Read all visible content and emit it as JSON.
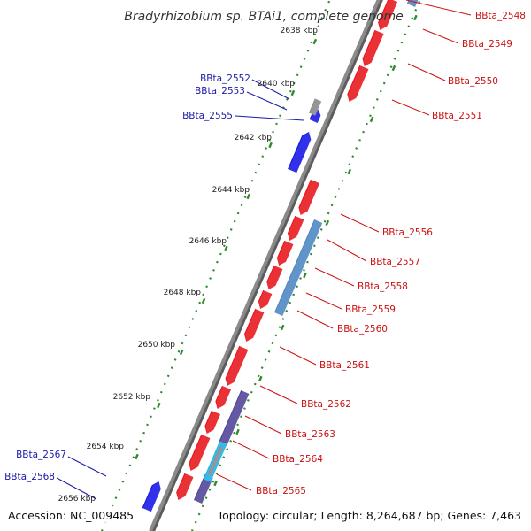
{
  "title": "Bradyrhizobium sp. BTAi1, complete genome",
  "footer": {
    "accession": "Accession: NC_009485",
    "summary": "Topology: circular; Length: 8,264,687 bp; Genes: 7,463"
  },
  "colors": {
    "backbone": "#8a8a8a",
    "tick_dots": "#2f8a2f",
    "forward_gene": "#e8151b",
    "reverse_gene": "#1515e6",
    "steel_gene": "#4c86c2",
    "indigo_gene": "#4f4396",
    "cyan_gene": "#1ab2e8",
    "gray_gene": "#888888",
    "left_label": "#1a1aa6",
    "right_label": "#cc1111"
  },
  "ticks": [
    "2638 kbp",
    "2640 kbp",
    "2642 kbp",
    "2644 kbp",
    "2646 kbp",
    "2648 kbp",
    "2650 kbp",
    "2652 kbp",
    "2654 kbp",
    "2656 kbp"
  ],
  "left_labels": [
    "BBta_2552",
    "BBta_2553",
    "BBta_2555",
    "BBta_2567",
    "BBta_2568"
  ],
  "right_labels": [
    "BBta_2548",
    "BBta_2549",
    "BBta_2550",
    "BBta_2551",
    "BBta_2556",
    "BBta_2557",
    "BBta_2558",
    "BBta_2559",
    "BBta_2560",
    "BBta_2561",
    "BBta_2562",
    "BBta_2563",
    "BBta_2564",
    "BBta_2565"
  ]
}
